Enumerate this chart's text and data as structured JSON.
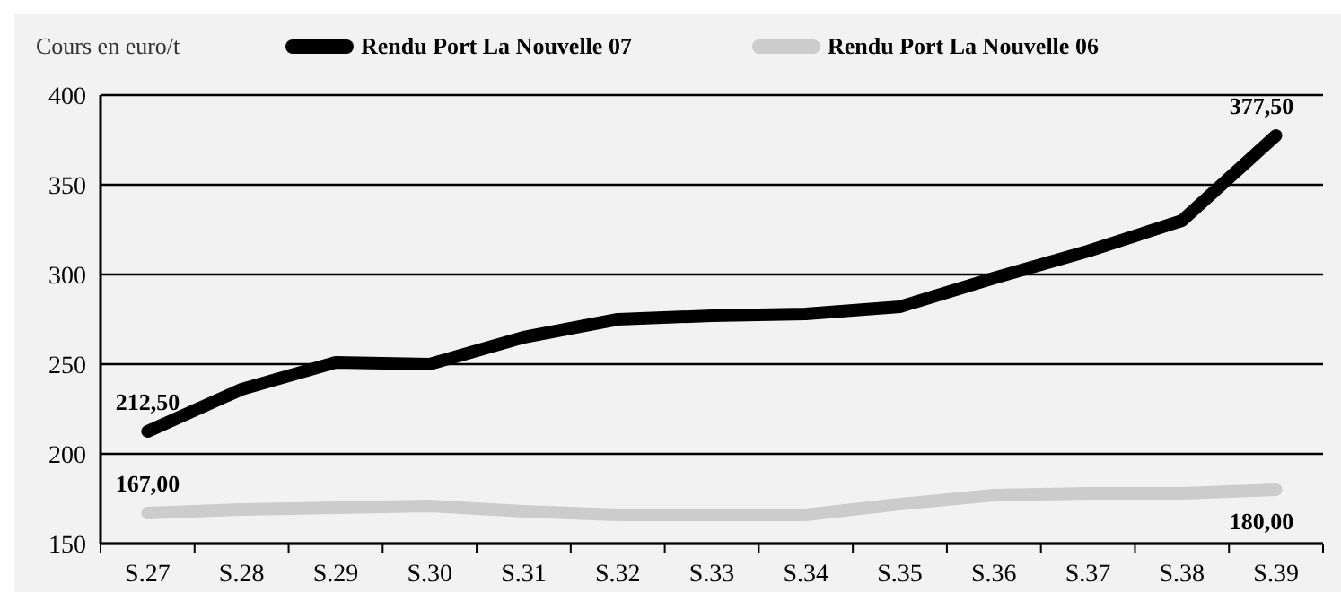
{
  "chart_data": {
    "type": "line",
    "ylabel": "Cours en euro/t",
    "categories": [
      "S.27",
      "S.28",
      "S.29",
      "S.30",
      "S.31",
      "S.32",
      "S.33",
      "S.34",
      "S.35",
      "S.36",
      "S.37",
      "S.38",
      "S.39"
    ],
    "series": [
      {
        "name": "Rendu Port La Nouvelle  07",
        "color": "#000000",
        "values": [
          212.5,
          236,
          251,
          250,
          265,
          275,
          277,
          278,
          282,
          298,
          313,
          330,
          377.5
        ],
        "value_labels": [
          "212,50",
          null,
          null,
          null,
          null,
          null,
          null,
          null,
          null,
          null,
          null,
          null,
          "377,50"
        ]
      },
      {
        "name": "Rendu Port La Nouvelle 06",
        "color": "#cccccc",
        "values": [
          167,
          169,
          170,
          171,
          168,
          166,
          166,
          166,
          172,
          177,
          178,
          178,
          180
        ],
        "value_labels": [
          "167,00",
          null,
          null,
          null,
          null,
          null,
          null,
          null,
          null,
          null,
          null,
          null,
          "180,00"
        ]
      }
    ],
    "ylim": [
      150,
      400
    ],
    "yticks": [
      150,
      200,
      250,
      300,
      350,
      400
    ],
    "grid": "y",
    "legend": "top",
    "line_style": "solid",
    "marker": "none"
  }
}
